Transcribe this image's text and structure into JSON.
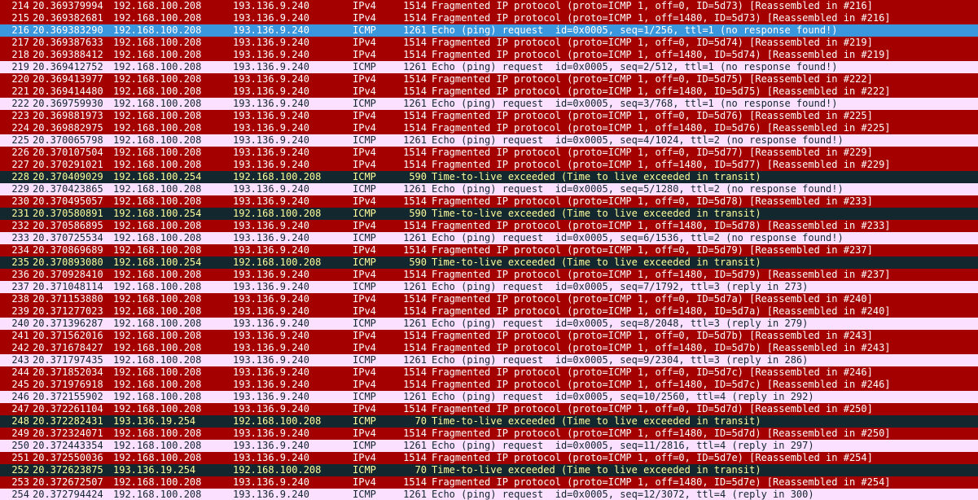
{
  "colors": {
    "fragment_bg": "#a40000",
    "fragment_fg": "#fffcfc",
    "icmp_bg": "#fce0ff",
    "icmp_fg": "#12272e",
    "ttl_bg": "#12272e",
    "ttl_fg": "#fffc9c",
    "selected_bg": "#3a96dd",
    "selected_fg": "#ffffff"
  },
  "rows": [
    {
      "no": "214",
      "time": "20.369379994",
      "src": "192.168.100.208",
      "dst": "193.136.9.240",
      "proto": "IPv4",
      "len": "1514",
      "info": "Fragmented IP protocol (proto=ICMP 1, off=0, ID=5d73) [Reassembled in #216]",
      "kind": "frag"
    },
    {
      "no": "215",
      "time": "20.369382681",
      "src": "192.168.100.208",
      "dst": "193.136.9.240",
      "proto": "IPv4",
      "len": "1514",
      "info": "Fragmented IP protocol (proto=ICMP 1, off=1480, ID=5d73) [Reassembled in #216]",
      "kind": "frag"
    },
    {
      "no": "216",
      "time": "20.369383290",
      "src": "192.168.100.208",
      "dst": "193.136.9.240",
      "proto": "ICMP",
      "len": "1261",
      "info": "Echo (ping) request  id=0x0005, seq=1/256, ttl=1 (no response found!)",
      "kind": "sel"
    },
    {
      "no": "217",
      "time": "20.369387633",
      "src": "192.168.100.208",
      "dst": "193.136.9.240",
      "proto": "IPv4",
      "len": "1514",
      "info": "Fragmented IP protocol (proto=ICMP 1, off=0, ID=5d74) [Reassembled in #219]",
      "kind": "frag"
    },
    {
      "no": "218",
      "time": "20.369388412",
      "src": "192.168.100.208",
      "dst": "193.136.9.240",
      "proto": "IPv4",
      "len": "1514",
      "info": "Fragmented IP protocol (proto=ICMP 1, off=1480, ID=5d74) [Reassembled in #219]",
      "kind": "frag"
    },
    {
      "no": "219",
      "time": "20.369412752",
      "src": "192.168.100.208",
      "dst": "193.136.9.240",
      "proto": "ICMP",
      "len": "1261",
      "info": "Echo (ping) request  id=0x0005, seq=2/512, ttl=1 (no response found!)",
      "kind": "icmp"
    },
    {
      "no": "220",
      "time": "20.369413977",
      "src": "192.168.100.208",
      "dst": "193.136.9.240",
      "proto": "IPv4",
      "len": "1514",
      "info": "Fragmented IP protocol (proto=ICMP 1, off=0, ID=5d75) [Reassembled in #222]",
      "kind": "frag"
    },
    {
      "no": "221",
      "time": "20.369414480",
      "src": "192.168.100.208",
      "dst": "193.136.9.240",
      "proto": "IPv4",
      "len": "1514",
      "info": "Fragmented IP protocol (proto=ICMP 1, off=1480, ID=5d75) [Reassembled in #222]",
      "kind": "frag"
    },
    {
      "no": "222",
      "time": "20.369759930",
      "src": "192.168.100.208",
      "dst": "193.136.9.240",
      "proto": "ICMP",
      "len": "1261",
      "info": "Echo (ping) request  id=0x0005, seq=3/768, ttl=1 (no response found!)",
      "kind": "icmp"
    },
    {
      "no": "223",
      "time": "20.369881973",
      "src": "192.168.100.208",
      "dst": "193.136.9.240",
      "proto": "IPv4",
      "len": "1514",
      "info": "Fragmented IP protocol (proto=ICMP 1, off=0, ID=5d76) [Reassembled in #225]",
      "kind": "frag"
    },
    {
      "no": "224",
      "time": "20.369882975",
      "src": "192.168.100.208",
      "dst": "193.136.9.240",
      "proto": "IPv4",
      "len": "1514",
      "info": "Fragmented IP protocol (proto=ICMP 1, off=1480, ID=5d76) [Reassembled in #225]",
      "kind": "frag"
    },
    {
      "no": "225",
      "time": "20.370065798",
      "src": "192.168.100.208",
      "dst": "193.136.9.240",
      "proto": "ICMP",
      "len": "1261",
      "info": "Echo (ping) request  id=0x0005, seq=4/1024, ttl=2 (no response found!)",
      "kind": "icmp"
    },
    {
      "no": "226",
      "time": "20.370107504",
      "src": "192.168.100.208",
      "dst": "193.136.9.240",
      "proto": "IPv4",
      "len": "1514",
      "info": "Fragmented IP protocol (proto=ICMP 1, off=0, ID=5d77) [Reassembled in #229]",
      "kind": "frag"
    },
    {
      "no": "227",
      "time": "20.370291021",
      "src": "192.168.100.208",
      "dst": "193.136.9.240",
      "proto": "IPv4",
      "len": "1514",
      "info": "Fragmented IP protocol (proto=ICMP 1, off=1480, ID=5d77) [Reassembled in #229]",
      "kind": "frag"
    },
    {
      "no": "228",
      "time": "20.370409029",
      "src": "192.168.100.254",
      "dst": "192.168.100.208",
      "proto": "ICMP",
      "len": "590",
      "info": "Time-to-live exceeded (Time to live exceeded in transit)",
      "kind": "ttl"
    },
    {
      "no": "229",
      "time": "20.370423865",
      "src": "192.168.100.208",
      "dst": "193.136.9.240",
      "proto": "ICMP",
      "len": "1261",
      "info": "Echo (ping) request  id=0x0005, seq=5/1280, ttl=2 (no response found!)",
      "kind": "icmp"
    },
    {
      "no": "230",
      "time": "20.370495057",
      "src": "192.168.100.208",
      "dst": "193.136.9.240",
      "proto": "IPv4",
      "len": "1514",
      "info": "Fragmented IP protocol (proto=ICMP 1, off=0, ID=5d78) [Reassembled in #233]",
      "kind": "frag"
    },
    {
      "no": "231",
      "time": "20.370580891",
      "src": "192.168.100.254",
      "dst": "192.168.100.208",
      "proto": "ICMP",
      "len": "590",
      "info": "Time-to-live exceeded (Time to live exceeded in transit)",
      "kind": "ttl"
    },
    {
      "no": "232",
      "time": "20.370586895",
      "src": "192.168.100.208",
      "dst": "193.136.9.240",
      "proto": "IPv4",
      "len": "1514",
      "info": "Fragmented IP protocol (proto=ICMP 1, off=1480, ID=5d78) [Reassembled in #233]",
      "kind": "frag"
    },
    {
      "no": "233",
      "time": "20.370725534",
      "src": "192.168.100.208",
      "dst": "193.136.9.240",
      "proto": "ICMP",
      "len": "1261",
      "info": "Echo (ping) request  id=0x0005, seq=6/1536, ttl=2 (no response found!)",
      "kind": "icmp"
    },
    {
      "no": "234",
      "time": "20.370869689",
      "src": "192.168.100.208",
      "dst": "193.136.9.240",
      "proto": "IPv4",
      "len": "1514",
      "info": "Fragmented IP protocol (proto=ICMP 1, off=0, ID=5d79) [Reassembled in #237]",
      "kind": "frag"
    },
    {
      "no": "235",
      "time": "20.370893080",
      "src": "192.168.100.254",
      "dst": "192.168.100.208",
      "proto": "ICMP",
      "len": "590",
      "info": "Time-to-live exceeded (Time to live exceeded in transit)",
      "kind": "ttl"
    },
    {
      "no": "236",
      "time": "20.370928410",
      "src": "192.168.100.208",
      "dst": "193.136.9.240",
      "proto": "IPv4",
      "len": "1514",
      "info": "Fragmented IP protocol (proto=ICMP 1, off=1480, ID=5d79) [Reassembled in #237]",
      "kind": "frag"
    },
    {
      "no": "237",
      "time": "20.371048114",
      "src": "192.168.100.208",
      "dst": "193.136.9.240",
      "proto": "ICMP",
      "len": "1261",
      "info": "Echo (ping) request  id=0x0005, seq=7/1792, ttl=3 (reply in 273)",
      "kind": "icmp"
    },
    {
      "no": "238",
      "time": "20.371153880",
      "src": "192.168.100.208",
      "dst": "193.136.9.240",
      "proto": "IPv4",
      "len": "1514",
      "info": "Fragmented IP protocol (proto=ICMP 1, off=0, ID=5d7a) [Reassembled in #240]",
      "kind": "frag"
    },
    {
      "no": "239",
      "time": "20.371277023",
      "src": "192.168.100.208",
      "dst": "193.136.9.240",
      "proto": "IPv4",
      "len": "1514",
      "info": "Fragmented IP protocol (proto=ICMP 1, off=1480, ID=5d7a) [Reassembled in #240]",
      "kind": "frag"
    },
    {
      "no": "240",
      "time": "20.371396287",
      "src": "192.168.100.208",
      "dst": "193.136.9.240",
      "proto": "ICMP",
      "len": "1261",
      "info": "Echo (ping) request  id=0x0005, seq=8/2048, ttl=3 (reply in 279)",
      "kind": "icmp"
    },
    {
      "no": "241",
      "time": "20.371562016",
      "src": "192.168.100.208",
      "dst": "193.136.9.240",
      "proto": "IPv4",
      "len": "1514",
      "info": "Fragmented IP protocol (proto=ICMP 1, off=0, ID=5d7b) [Reassembled in #243]",
      "kind": "frag"
    },
    {
      "no": "242",
      "time": "20.371678427",
      "src": "192.168.100.208",
      "dst": "193.136.9.240",
      "proto": "IPv4",
      "len": "1514",
      "info": "Fragmented IP protocol (proto=ICMP 1, off=1480, ID=5d7b) [Reassembled in #243]",
      "kind": "frag"
    },
    {
      "no": "243",
      "time": "20.371797435",
      "src": "192.168.100.208",
      "dst": "193.136.9.240",
      "proto": "ICMP",
      "len": "1261",
      "info": "Echo (ping) request  id=0x0005, seq=9/2304, ttl=3 (reply in 286)",
      "kind": "icmp"
    },
    {
      "no": "244",
      "time": "20.371852034",
      "src": "192.168.100.208",
      "dst": "193.136.9.240",
      "proto": "IPv4",
      "len": "1514",
      "info": "Fragmented IP protocol (proto=ICMP 1, off=0, ID=5d7c) [Reassembled in #246]",
      "kind": "frag"
    },
    {
      "no": "245",
      "time": "20.371976918",
      "src": "192.168.100.208",
      "dst": "193.136.9.240",
      "proto": "IPv4",
      "len": "1514",
      "info": "Fragmented IP protocol (proto=ICMP 1, off=1480, ID=5d7c) [Reassembled in #246]",
      "kind": "frag"
    },
    {
      "no": "246",
      "time": "20.372155902",
      "src": "192.168.100.208",
      "dst": "193.136.9.240",
      "proto": "ICMP",
      "len": "1261",
      "info": "Echo (ping) request  id=0x0005, seq=10/2560, ttl=4 (reply in 292)",
      "kind": "icmp"
    },
    {
      "no": "247",
      "time": "20.372261104",
      "src": "192.168.100.208",
      "dst": "193.136.9.240",
      "proto": "IPv4",
      "len": "1514",
      "info": "Fragmented IP protocol (proto=ICMP 1, off=0, ID=5d7d) [Reassembled in #250]",
      "kind": "frag"
    },
    {
      "no": "248",
      "time": "20.372282431",
      "src": "193.136.19.254",
      "dst": "192.168.100.208",
      "proto": "ICMP",
      "len": "70",
      "info": "Time-to-live exceeded (Time to live exceeded in transit)",
      "kind": "ttl"
    },
    {
      "no": "249",
      "time": "20.372324071",
      "src": "192.168.100.208",
      "dst": "193.136.9.240",
      "proto": "IPv4",
      "len": "1514",
      "info": "Fragmented IP protocol (proto=ICMP 1, off=1480, ID=5d7d) [Reassembled in #250]",
      "kind": "frag"
    },
    {
      "no": "250",
      "time": "20.372443354",
      "src": "192.168.100.208",
      "dst": "193.136.9.240",
      "proto": "ICMP",
      "len": "1261",
      "info": "Echo (ping) request  id=0x0005, seq=11/2816, ttl=4 (reply in 297)",
      "kind": "icmp"
    },
    {
      "no": "251",
      "time": "20.372550036",
      "src": "192.168.100.208",
      "dst": "193.136.9.240",
      "proto": "IPv4",
      "len": "1514",
      "info": "Fragmented IP protocol (proto=ICMP 1, off=0, ID=5d7e) [Reassembled in #254]",
      "kind": "frag"
    },
    {
      "no": "252",
      "time": "20.372623875",
      "src": "193.136.19.254",
      "dst": "192.168.100.208",
      "proto": "ICMP",
      "len": "70",
      "info": "Time-to-live exceeded (Time to live exceeded in transit)",
      "kind": "ttl"
    },
    {
      "no": "253",
      "time": "20.372672507",
      "src": "192.168.100.208",
      "dst": "193.136.9.240",
      "proto": "IPv4",
      "len": "1514",
      "info": "Fragmented IP protocol (proto=ICMP 1, off=1480, ID=5d7e) [Reassembled in #254]",
      "kind": "frag"
    },
    {
      "no": "254",
      "time": "20.372794424",
      "src": "192.168.100.208",
      "dst": "193.136.9.240",
      "proto": "ICMP",
      "len": "1261",
      "info": "Echo (ping) request  id=0x0005, seq=12/3072, ttl=4 (reply in 300)",
      "kind": "icmp"
    }
  ]
}
